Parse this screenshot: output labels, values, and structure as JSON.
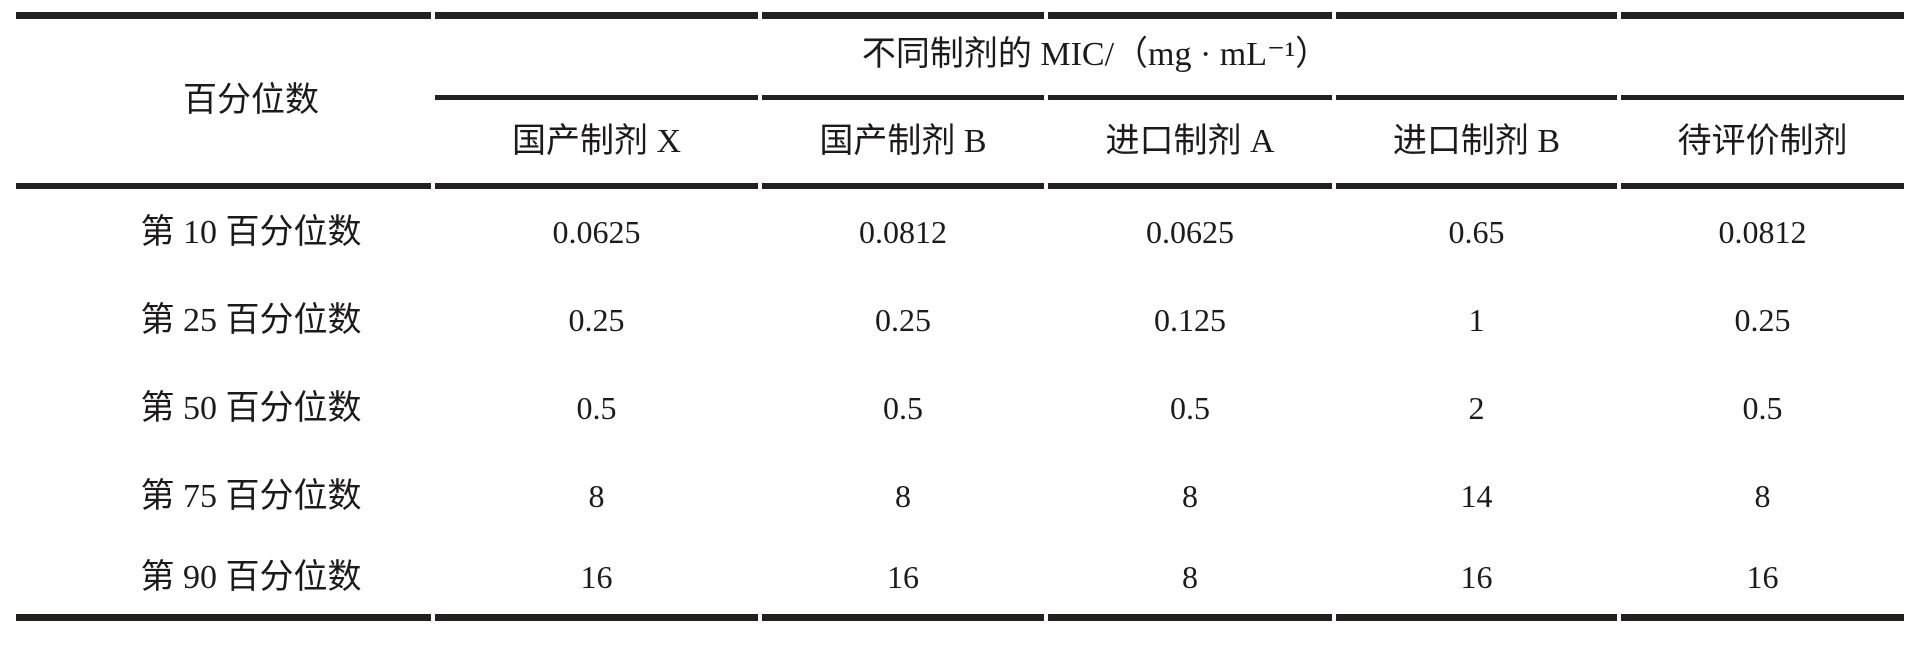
{
  "table": {
    "corner_header": "百分位数",
    "group_header": "不同制剂的 MIC/（mg · mL⁻¹）",
    "columns": [
      "国产制剂 X",
      "国产制剂 B",
      "进口制剂 A",
      "进口制剂 B",
      "待评价制剂"
    ],
    "rows": [
      {
        "label": "第 10 百分位数",
        "values": [
          "0.0625",
          "0.0812",
          "0.0625",
          "0.65",
          "0.0812"
        ]
      },
      {
        "label": "第 25 百分位数",
        "values": [
          "0.25",
          "0.25",
          "0.125",
          "1",
          "0.25"
        ]
      },
      {
        "label": "第 50 百分位数",
        "values": [
          "0.5",
          "0.5",
          "0.5",
          "2",
          "0.5"
        ]
      },
      {
        "label": "第 75 百分位数",
        "values": [
          "8",
          "8",
          "8",
          "14",
          "8"
        ]
      },
      {
        "label": "第 90 百分位数",
        "values": [
          "16",
          "16",
          "8",
          "16",
          "16"
        ]
      }
    ]
  },
  "colors": {
    "background": "#ffffff",
    "text": "#1c1a1a",
    "rule": "#242020"
  }
}
